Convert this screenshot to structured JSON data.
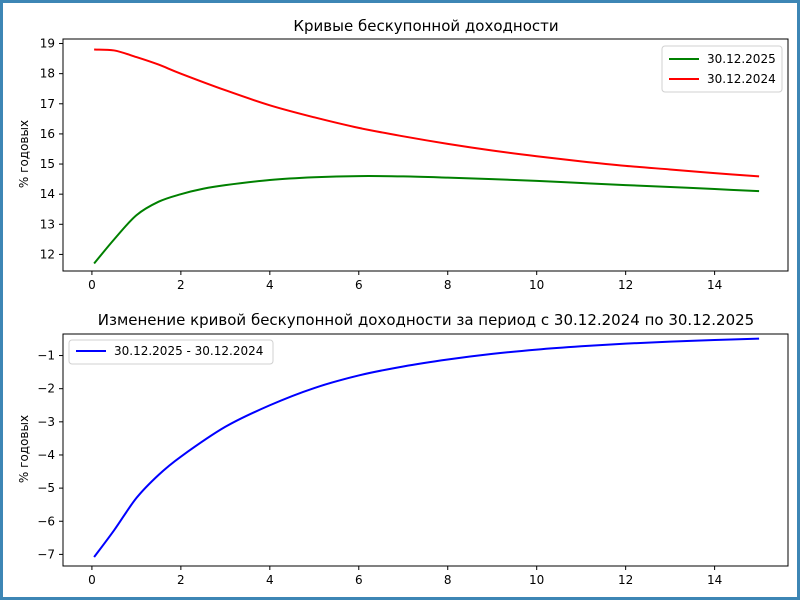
{
  "chart_data": [
    {
      "type": "line",
      "title": "Кривые бескупонной доходности",
      "xlabel": "",
      "ylabel": "% годовых",
      "xlim": [
        -0.65,
        15.65
      ],
      "ylim": [
        11.45,
        19.15
      ],
      "xticks": [
        0,
        2,
        4,
        6,
        8,
        10,
        12,
        14
      ],
      "yticks": [
        12,
        13,
        14,
        15,
        16,
        17,
        18,
        19
      ],
      "legend": "top-right",
      "grid": false,
      "series": [
        {
          "name": "30.12.2025",
          "color": "#008000",
          "x": [
            0.05,
            0.5,
            1,
            1.5,
            2,
            2.5,
            3,
            4,
            5,
            6,
            7,
            8,
            9,
            10,
            11,
            12,
            13,
            14,
            15
          ],
          "y": [
            11.7,
            12.5,
            13.3,
            13.75,
            14.0,
            14.18,
            14.3,
            14.47,
            14.56,
            14.6,
            14.59,
            14.55,
            14.5,
            14.44,
            14.37,
            14.3,
            14.24,
            14.17,
            14.1
          ]
        },
        {
          "name": "30.12.2024",
          "color": "#ff0000",
          "x": [
            0.05,
            0.5,
            1,
            1.5,
            2,
            3,
            4,
            5,
            6,
            7,
            8,
            9,
            10,
            11,
            12,
            13,
            14,
            15
          ],
          "y": [
            18.8,
            18.77,
            18.55,
            18.3,
            18.0,
            17.45,
            16.95,
            16.55,
            16.2,
            15.92,
            15.67,
            15.45,
            15.26,
            15.09,
            14.94,
            14.82,
            14.7,
            14.59
          ]
        }
      ]
    },
    {
      "type": "line",
      "title": "Изменение кривой бескупонной доходности за период с 30.12.2024 по 30.12.2025",
      "xlabel": "",
      "ylabel": "% годовых",
      "xlim": [
        -0.65,
        15.65
      ],
      "ylim": [
        -7.35,
        -0.35
      ],
      "xticks": [
        0,
        2,
        4,
        6,
        8,
        10,
        12,
        14
      ],
      "yticks": [
        -7,
        -6,
        -5,
        -4,
        -3,
        -2,
        -1
      ],
      "legend": "top-left",
      "grid": false,
      "series": [
        {
          "name": "30.12.2025 - 30.12.2024",
          "color": "#0000ff",
          "x": [
            0.05,
            0.5,
            1,
            1.5,
            2,
            3,
            4,
            5,
            6,
            7,
            8,
            9,
            10,
            11,
            12,
            13,
            14,
            15
          ],
          "y": [
            -7.08,
            -6.27,
            -5.3,
            -4.6,
            -4.05,
            -3.15,
            -2.5,
            -1.98,
            -1.6,
            -1.33,
            -1.12,
            -0.95,
            -0.82,
            -0.72,
            -0.64,
            -0.58,
            -0.53,
            -0.49
          ]
        }
      ]
    }
  ]
}
